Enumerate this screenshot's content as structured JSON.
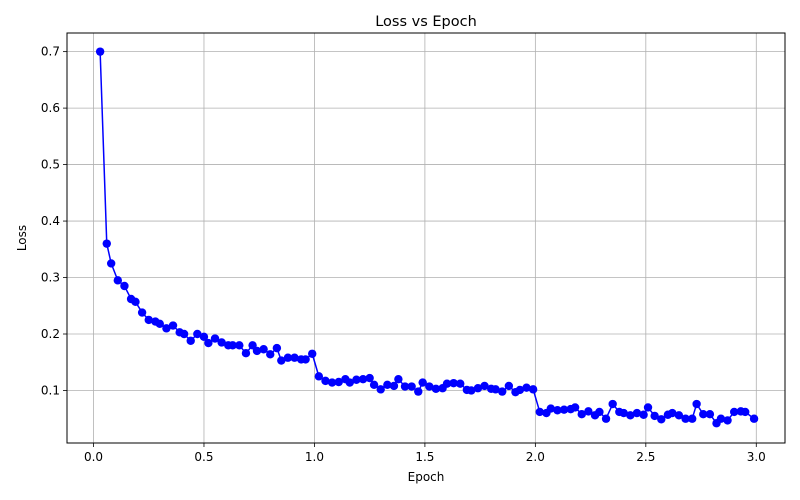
{
  "chart_data": {
    "type": "line",
    "title": "Loss vs Epoch",
    "xlabel": "Epoch",
    "ylabel": "Loss",
    "xlim": [
      -0.12,
      3.13
    ],
    "ylim": [
      0.007,
      0.733
    ],
    "xticks": [
      0.0,
      0.5,
      1.0,
      1.5,
      2.0,
      2.5,
      3.0
    ],
    "xtick_labels": [
      "0.0",
      "0.5",
      "1.0",
      "1.5",
      "2.0",
      "2.5",
      "3.0"
    ],
    "yticks": [
      0.1,
      0.2,
      0.3,
      0.4,
      0.5,
      0.6,
      0.7
    ],
    "ytick_labels": [
      "0.1",
      "0.2",
      "0.3",
      "0.4",
      "0.5",
      "0.6",
      "0.7"
    ],
    "grid": true,
    "series": [
      {
        "color": "#0000ff",
        "marker": "circle",
        "x": [
          0.03,
          0.06,
          0.08,
          0.11,
          0.14,
          0.17,
          0.19,
          0.22,
          0.25,
          0.28,
          0.3,
          0.33,
          0.36,
          0.39,
          0.41,
          0.44,
          0.47,
          0.5,
          0.52,
          0.55,
          0.58,
          0.61,
          0.63,
          0.66,
          0.69,
          0.72,
          0.74,
          0.77,
          0.8,
          0.83,
          0.85,
          0.88,
          0.91,
          0.94,
          0.96,
          0.99,
          1.02,
          1.05,
          1.08,
          1.11,
          1.14,
          1.16,
          1.19,
          1.22,
          1.25,
          1.27,
          1.3,
          1.33,
          1.36,
          1.38,
          1.41,
          1.44,
          1.47,
          1.49,
          1.52,
          1.55,
          1.58,
          1.6,
          1.63,
          1.66,
          1.69,
          1.71,
          1.74,
          1.77,
          1.8,
          1.82,
          1.85,
          1.88,
          1.91,
          1.93,
          1.96,
          1.99,
          2.02,
          2.05,
          2.07,
          2.1,
          2.13,
          2.16,
          2.18,
          2.21,
          2.24,
          2.27,
          2.29,
          2.32,
          2.35,
          2.38,
          2.4,
          2.43,
          2.46,
          2.49,
          2.51,
          2.54,
          2.57,
          2.6,
          2.62,
          2.65,
          2.68,
          2.71,
          2.73,
          2.76,
          2.79,
          2.82,
          2.84,
          2.87,
          2.9,
          2.93,
          2.95,
          2.99
        ],
        "y": [
          0.7,
          0.36,
          0.325,
          0.295,
          0.285,
          0.262,
          0.257,
          0.238,
          0.225,
          0.222,
          0.218,
          0.21,
          0.215,
          0.203,
          0.2,
          0.188,
          0.2,
          0.195,
          0.184,
          0.192,
          0.185,
          0.18,
          0.18,
          0.18,
          0.166,
          0.18,
          0.17,
          0.173,
          0.164,
          0.175,
          0.153,
          0.158,
          0.158,
          0.155,
          0.155,
          0.165,
          0.125,
          0.117,
          0.114,
          0.115,
          0.12,
          0.114,
          0.119,
          0.12,
          0.122,
          0.11,
          0.102,
          0.11,
          0.108,
          0.12,
          0.107,
          0.107,
          0.098,
          0.114,
          0.107,
          0.103,
          0.104,
          0.112,
          0.113,
          0.112,
          0.101,
          0.1,
          0.104,
          0.108,
          0.103,
          0.102,
          0.098,
          0.108,
          0.097,
          0.101,
          0.105,
          0.102,
          0.062,
          0.06,
          0.068,
          0.065,
          0.066,
          0.067,
          0.07,
          0.058,
          0.063,
          0.056,
          0.062,
          0.05,
          0.076,
          0.062,
          0.06,
          0.056,
          0.06,
          0.057,
          0.07,
          0.055,
          0.049,
          0.057,
          0.06,
          0.056,
          0.05,
          0.05,
          0.076,
          0.058,
          0.058,
          0.042,
          0.05,
          0.047,
          0.062,
          0.063,
          0.062,
          0.05
        ]
      }
    ]
  }
}
